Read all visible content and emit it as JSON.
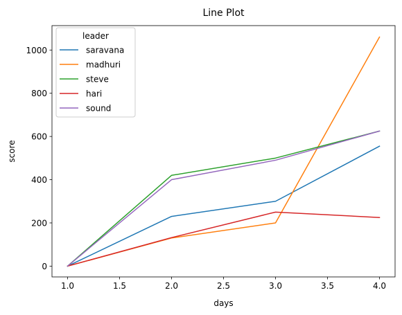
{
  "chart_data": {
    "type": "line",
    "title": "Line Plot",
    "xlabel": "days",
    "ylabel": "score",
    "xlim": [
      0.85,
      4.15
    ],
    "ylim": [
      -50,
      1113
    ],
    "x_ticks": [
      1.0,
      1.5,
      2.0,
      2.5,
      3.0,
      3.5,
      4.0
    ],
    "x_tick_labels": [
      "1.0",
      "1.5",
      "2.0",
      "2.5",
      "3.0",
      "3.5",
      "4.0"
    ],
    "y_ticks": [
      0,
      200,
      400,
      600,
      800,
      1000
    ],
    "y_tick_labels": [
      "0",
      "200",
      "400",
      "600",
      "800",
      "1000"
    ],
    "grid": false,
    "legend": {
      "title": "leader",
      "placement": "top-left"
    },
    "x": [
      1,
      2,
      3,
      4
    ],
    "series": [
      {
        "name": "saravana",
        "color": "#1f77b4",
        "values": [
          0,
          230,
          300,
          555
        ]
      },
      {
        "name": "madhuri",
        "color": "#ff7f0e",
        "values": [
          0,
          130,
          200,
          1060
        ]
      },
      {
        "name": "steve",
        "color": "#2ca02c",
        "values": [
          0,
          420,
          500,
          625
        ]
      },
      {
        "name": "hari",
        "color": "#d62728",
        "values": [
          0,
          132,
          250,
          225
        ]
      },
      {
        "name": "sound",
        "color": "#9467bd",
        "values": [
          0,
          400,
          490,
          625
        ]
      }
    ]
  }
}
